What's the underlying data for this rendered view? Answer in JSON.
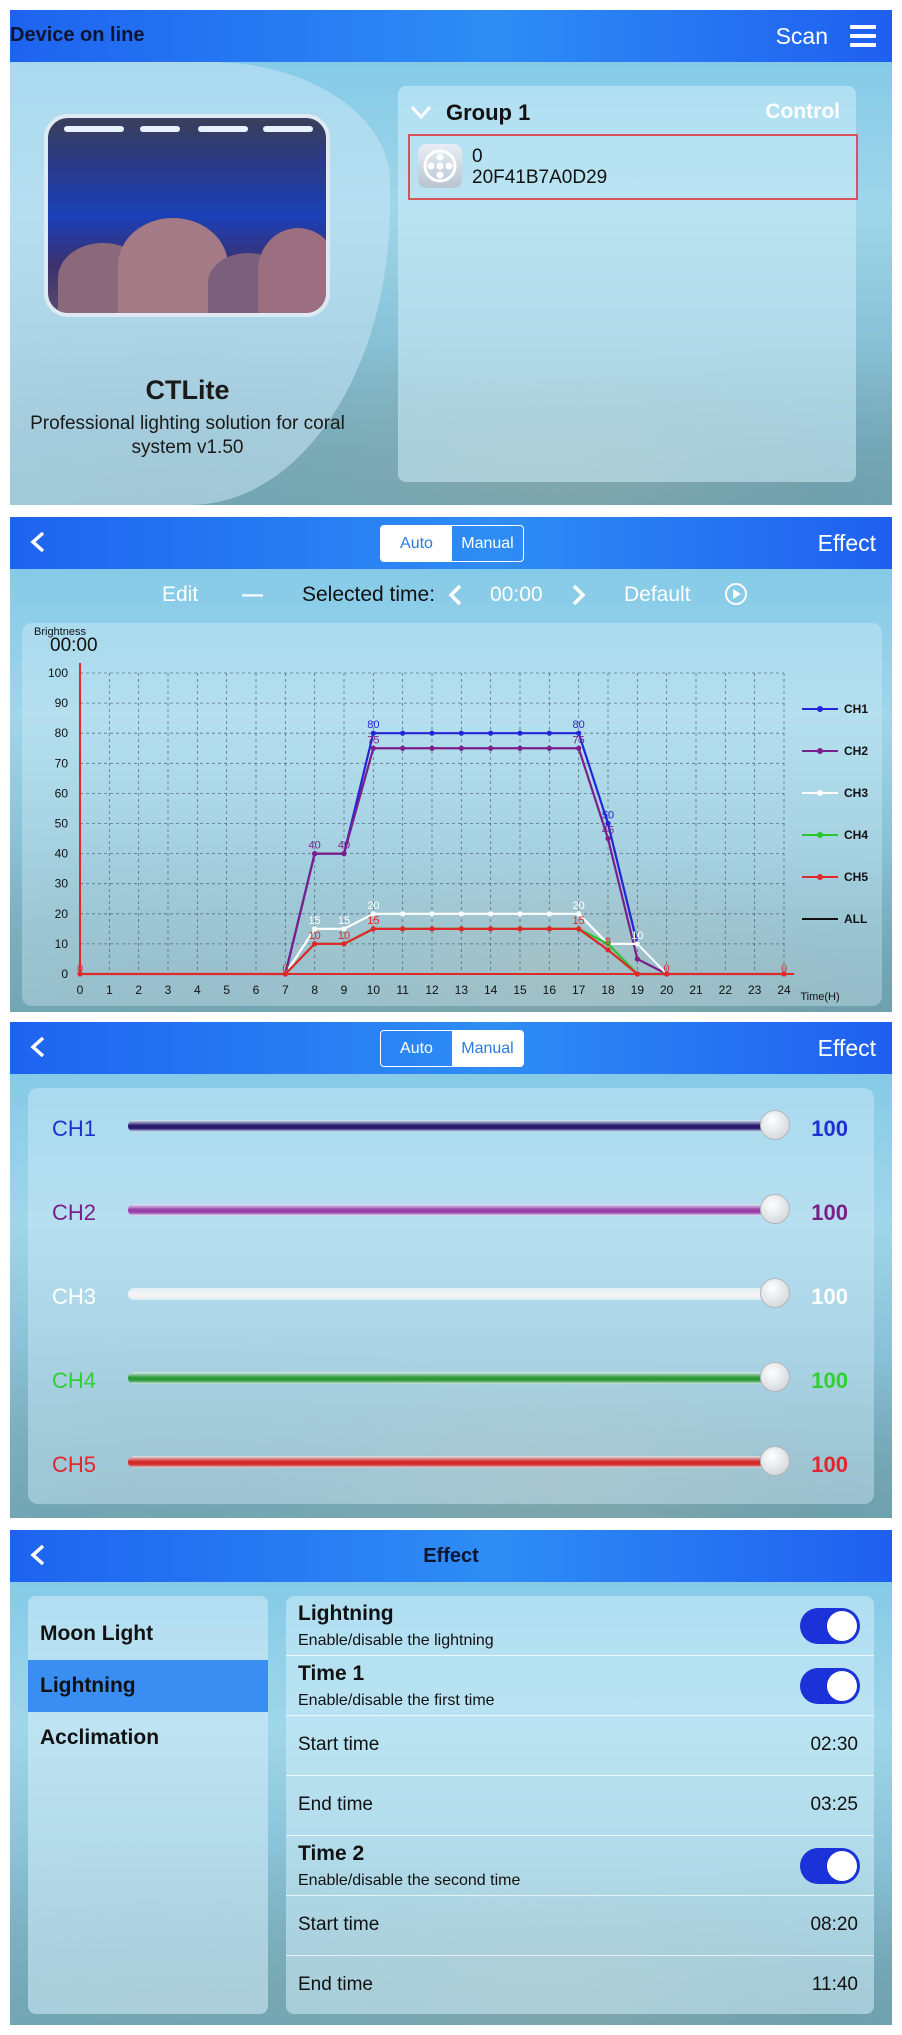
{
  "screen1": {
    "header_title": "Device on line",
    "scan_label": "Scan",
    "app_name": "CTLite",
    "app_description": "Professional lighting solution for coral system v1.50",
    "group": {
      "name": "Group 1",
      "control_label": "Control",
      "device": {
        "line1": "0",
        "line2": "20F41B7A0D29"
      }
    }
  },
  "screen2": {
    "seg_auto": "Auto",
    "seg_manual": "Manual",
    "effect_label": "Effect",
    "edit_label": "Edit",
    "minus_label": "—",
    "selected_time_label": "Selected time:",
    "selected_time_value": "00:00",
    "default_label": "Default",
    "chart_time_readout": "00:00"
  },
  "chart_data": {
    "type": "line",
    "ylabel": "Brightness",
    "xlabel": "Time(H)",
    "xlim": [
      0,
      24
    ],
    "ylim": [
      0,
      100
    ],
    "x_ticks": [
      0,
      1,
      2,
      3,
      4,
      5,
      6,
      7,
      8,
      9,
      10,
      11,
      12,
      13,
      14,
      15,
      16,
      17,
      18,
      19,
      20,
      21,
      22,
      23,
      24
    ],
    "y_ticks": [
      0,
      10,
      20,
      30,
      40,
      50,
      60,
      70,
      80,
      90,
      100
    ],
    "grid": true,
    "legend_position": "right",
    "series": [
      {
        "name": "CH1",
        "color": "#2424d8",
        "x": [
          7,
          8,
          9,
          10,
          11,
          12,
          13,
          14,
          15,
          16,
          17,
          18,
          19,
          20
        ],
        "y": [
          0,
          40,
          40,
          80,
          80,
          80,
          80,
          80,
          80,
          80,
          80,
          50,
          10,
          0
        ]
      },
      {
        "name": "CH2",
        "color": "#7b1f8a",
        "x": [
          7,
          8,
          9,
          10,
          11,
          12,
          13,
          14,
          15,
          16,
          17,
          18,
          19,
          20
        ],
        "y": [
          0,
          40,
          40,
          75,
          75,
          75,
          75,
          75,
          75,
          75,
          75,
          45,
          5,
          0
        ]
      },
      {
        "name": "CH3",
        "color": "#ffffff",
        "x": [
          7,
          8,
          9,
          10,
          11,
          12,
          13,
          14,
          15,
          16,
          17,
          18,
          19,
          20
        ],
        "y": [
          0,
          15,
          15,
          20,
          20,
          20,
          20,
          20,
          20,
          20,
          20,
          10,
          10,
          0
        ]
      },
      {
        "name": "CH4",
        "color": "#27c62a",
        "x": [
          7,
          8,
          9,
          10,
          11,
          12,
          13,
          14,
          15,
          16,
          17,
          18,
          19,
          20
        ],
        "y": [
          0,
          10,
          10,
          15,
          15,
          15,
          15,
          15,
          15,
          15,
          15,
          10,
          0,
          0
        ]
      },
      {
        "name": "CH5",
        "color": "#e0282a",
        "x": [
          0,
          7,
          8,
          9,
          10,
          11,
          12,
          13,
          14,
          15,
          16,
          17,
          18,
          19,
          20,
          24
        ],
        "y": [
          0,
          0,
          10,
          10,
          15,
          15,
          15,
          15,
          15,
          15,
          15,
          15,
          8,
          0,
          0,
          0
        ]
      }
    ],
    "all_legend": {
      "name": "ALL",
      "color": "#111111"
    },
    "data_labels": [
      {
        "text": "80",
        "x": 10,
        "y": 80,
        "color": "#2424d8"
      },
      {
        "text": "75",
        "x": 10,
        "y": 75,
        "color": "#7b1f8a"
      },
      {
        "text": "80",
        "x": 17,
        "y": 80,
        "color": "#2424d8"
      },
      {
        "text": "75",
        "x": 17,
        "y": 75,
        "color": "#7b1f8a"
      },
      {
        "text": "40",
        "x": 8,
        "y": 40,
        "color": "#7b1f8a"
      },
      {
        "text": "40",
        "x": 9,
        "y": 40,
        "color": "#7b1f8a"
      },
      {
        "text": "50",
        "x": 18,
        "y": 50,
        "color": "#2424d8"
      },
      {
        "text": "45",
        "x": 18,
        "y": 45,
        "color": "#7b1f8a"
      },
      {
        "text": "20",
        "x": 10,
        "y": 20,
        "color": "#ffffff"
      },
      {
        "text": "20",
        "x": 17,
        "y": 20,
        "color": "#ffffff"
      },
      {
        "text": "15",
        "x": 8,
        "y": 15,
        "color": "#ffffff"
      },
      {
        "text": "15",
        "x": 9,
        "y": 15,
        "color": "#ffffff"
      },
      {
        "text": "10",
        "x": 8,
        "y": 10,
        "color": "#e0282a"
      },
      {
        "text": "10",
        "x": 9,
        "y": 10,
        "color": "#e0282a"
      },
      {
        "text": "15",
        "x": 10,
        "y": 15,
        "color": "#e0282a"
      },
      {
        "text": "15",
        "x": 17,
        "y": 15,
        "color": "#e0282a"
      },
      {
        "text": "10",
        "x": 19,
        "y": 10,
        "color": "#ffffff"
      },
      {
        "text": "8",
        "x": 18,
        "y": 8,
        "color": "#e0282a"
      },
      {
        "text": "0",
        "x": 20,
        "y": 0,
        "color": "#e0282a"
      },
      {
        "text": "0",
        "x": 24,
        "y": 0,
        "color": "#e0282a"
      },
      {
        "text": "0",
        "x": 7,
        "y": 0,
        "color": "#e0282a"
      },
      {
        "text": "0",
        "x": 0,
        "y": 0,
        "color": "#e0282a"
      }
    ]
  },
  "screen3": {
    "seg_auto": "Auto",
    "seg_manual": "Manual",
    "effect_label": "Effect",
    "channels": [
      {
        "label": "CH1",
        "value": "100",
        "level": 1.0,
        "color": "#1f2fd0",
        "track": "#2a1a6e"
      },
      {
        "label": "CH2",
        "value": "100",
        "level": 1.0,
        "color": "#7a1f8a",
        "track": "#9a3fa8"
      },
      {
        "label": "CH3",
        "value": "100",
        "level": 1.0,
        "color": "#ffffff",
        "track": "#f2f2f2"
      },
      {
        "label": "CH4",
        "value": "100",
        "level": 1.0,
        "color": "#2fd02f",
        "track": "#2f9a3a"
      },
      {
        "label": "CH5",
        "value": "100",
        "level": 1.0,
        "color": "#e3262b",
        "track": "#d62a2a"
      }
    ]
  },
  "screen4": {
    "header_title": "Effect",
    "menu": [
      {
        "label": "Moon Light",
        "selected": false
      },
      {
        "label": "Lightning",
        "selected": true
      },
      {
        "label": "Acclimation",
        "selected": false
      }
    ],
    "lightning": {
      "title": "Lightning",
      "subtitle": "Enable/disable the lightning",
      "enabled": true
    },
    "time1": {
      "title": "Time 1",
      "subtitle": "Enable/disable the first time",
      "enabled": true,
      "start_label": "Start time",
      "start_value": "02:30",
      "end_label": "End time",
      "end_value": "03:25"
    },
    "time2": {
      "title": "Time 2",
      "subtitle": "Enable/disable the second time",
      "enabled": true,
      "start_label": "Start time",
      "start_value": "08:20",
      "end_label": "End time",
      "end_value": "11:40"
    }
  }
}
